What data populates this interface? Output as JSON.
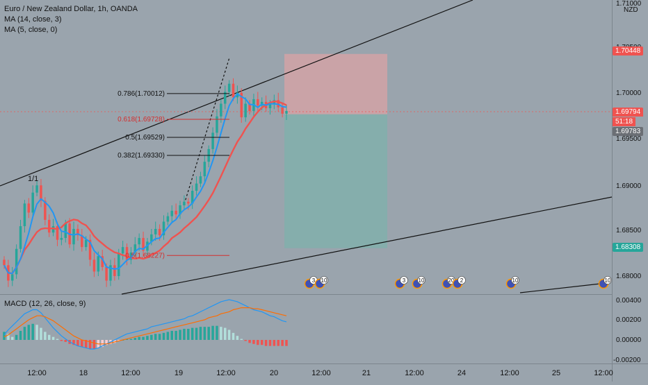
{
  "header": {
    "title": "Euro / New Zealand Dollar, 1h, OANDA",
    "indicator_1": "MA (14, close, 3)",
    "indicator_2": "MA (5, close, 0)",
    "currency": "NZD",
    "top_tick": "1.71000"
  },
  "macd": {
    "label": "MACD (12, 26, close, 9)"
  },
  "price_axis": {
    "ticks": [
      "1.70500",
      "1.70000",
      "1.69500",
      "1.69000",
      "1.68500",
      "1.68000"
    ],
    "tag_stop": "1.70448",
    "tag_current": "1.69794",
    "tag_countdown": "51:18",
    "tag_entry": "1.69783",
    "tag_target": "1.68308",
    "colors": {
      "stop": "#ef5350",
      "current": "#ef5350",
      "entry": "#6b6f75",
      "target": "#26a69a"
    }
  },
  "macd_axis": {
    "ticks": [
      "0.00400",
      "0.00200",
      "0.00000",
      "-0.00200"
    ]
  },
  "time_axis": {
    "ticks": [
      "12:00",
      "18",
      "12:00",
      "19",
      "12:00",
      "20",
      "12:00",
      "21",
      "12:00",
      "24",
      "12:00",
      "25",
      "12:00"
    ]
  },
  "annotations": {
    "wave_label": "1/1",
    "fib_levels": [
      {
        "label": "0.786(1.70012)",
        "color": "#111111"
      },
      {
        "label": "0.618(1.69728)",
        "color": "#d32f2f"
      },
      {
        "label": "0.5(1.69529)",
        "color": "#111111"
      },
      {
        "label": "0.382(1.69330)",
        "color": "#111111"
      },
      {
        "label": "0.5(1.68227)",
        "color": "#d32f2f"
      }
    ],
    "event_badges": [
      "3",
      "10",
      "3",
      "10",
      "20",
      "2",
      "10",
      "10"
    ]
  },
  "chart_data": {
    "type": "candlestick",
    "symbol": "EURNZD",
    "interval": "1h",
    "ylim": [
      1.6765,
      1.7115
    ],
    "price_levels": {
      "stop_loss": 1.70448,
      "current": 1.69794,
      "entry": 1.69783,
      "take_profit": 1.68308
    },
    "fibonacci": [
      {
        "ratio": 0.786,
        "price": 1.70012
      },
      {
        "ratio": 0.618,
        "price": 1.69728
      },
      {
        "ratio": 0.5,
        "price": 1.69529
      },
      {
        "ratio": 0.382,
        "price": 1.6933
      },
      {
        "ratio": 0.5,
        "price": 1.68227
      }
    ],
    "series": [
      {
        "name": "MA (14, close, 3)",
        "color": "#ef5350"
      },
      {
        "name": "MA (5, close, 0)",
        "color": "#2196f3"
      }
    ],
    "closes": [
      1.6812,
      1.6795,
      1.6802,
      1.683,
      1.6855,
      1.688,
      1.687,
      1.6892,
      1.69,
      1.6883,
      1.6862,
      1.6848,
      1.6855,
      1.684,
      1.6842,
      1.6858,
      1.6835,
      1.6852,
      1.6845,
      1.6832,
      1.684,
      1.6818,
      1.6805,
      1.6822,
      1.681,
      1.6795,
      1.6812,
      1.68,
      1.6825,
      1.6832,
      1.6818,
      1.6826,
      1.6835,
      1.6842,
      1.6828,
      1.6838,
      1.6846,
      1.6852,
      1.6845,
      1.686,
      1.6866,
      1.6872,
      1.6868,
      1.6878,
      1.6882,
      1.688,
      1.6894,
      1.6902,
      1.691,
      1.6926,
      1.694,
      1.6958,
      1.6976,
      1.699,
      1.7003,
      1.7012,
      1.6997,
      1.7002,
      1.6975,
      1.699,
      1.6982,
      1.6995,
      1.6988,
      1.6992,
      1.6985,
      1.699,
      1.6994,
      1.6986,
      1.6979,
      1.6982
    ],
    "macd_hist": [
      0.0008,
      0.0006,
      0.0003,
      0.0005,
      0.0009,
      0.0013,
      0.0015,
      0.0016,
      0.0015,
      0.0012,
      0.0008,
      0.0005,
      0.0003,
      0.0001,
      -0.0001,
      -0.0002,
      -0.0004,
      -0.0005,
      -0.0006,
      -0.0007,
      -0.0008,
      -0.0009,
      -0.0009,
      -0.0008,
      -0.0007,
      -0.0005,
      -0.0004,
      -0.0003,
      -0.0001,
      0.0,
      0.0001,
      0.0001,
      0.0002,
      0.0003,
      0.0003,
      0.0004,
      0.0005,
      0.0006,
      0.0006,
      0.0007,
      0.0008,
      0.0009,
      0.0009,
      0.001,
      0.0011,
      0.0011,
      0.0012,
      0.0012,
      0.0013,
      0.0013,
      0.0013,
      0.0014,
      0.0014,
      0.0013,
      0.0012,
      0.001,
      0.0007,
      0.0004,
      0.0001,
      -0.0001,
      -0.0003,
      -0.0004,
      -0.0005,
      -0.0005,
      -0.0006,
      -0.0006,
      -0.0006,
      -0.0006,
      -0.0006,
      -0.0006
    ],
    "macd_line": [
      0.0005,
      0.001,
      0.0014,
      0.0018,
      0.0022,
      0.0026,
      0.0028,
      0.003,
      0.003,
      0.0027,
      0.0022,
      0.0017,
      0.0012,
      0.0008,
      0.0004,
      0.0001,
      -0.0002,
      -0.0004,
      -0.0006,
      -0.0007,
      -0.0008,
      -0.0009,
      -0.0009,
      -0.0008,
      -0.0006,
      -0.0004,
      -0.0002,
      0.0,
      0.0002,
      0.0004,
      0.0006,
      0.0007,
      0.0008,
      0.0009,
      0.001,
      0.0011,
      0.0013,
      0.0014,
      0.0015,
      0.0016,
      0.0017,
      0.0018,
      0.0019,
      0.002,
      0.0021,
      0.0023,
      0.0024,
      0.0026,
      0.0028,
      0.003,
      0.0032,
      0.0034,
      0.0036,
      0.0038,
      0.0039,
      0.004,
      0.0039,
      0.0038,
      0.0036,
      0.0034,
      0.0032,
      0.003,
      0.0029,
      0.0028,
      0.0026,
      0.0024,
      0.0023,
      0.0021,
      0.0019,
      0.0018
    ],
    "macd_signal": [
      0.0003,
      0.0005,
      0.0008,
      0.0011,
      0.0014,
      0.0017,
      0.002,
      0.0022,
      0.0024,
      0.0024,
      0.0023,
      0.0021,
      0.0019,
      0.0016,
      0.0013,
      0.001,
      0.0007,
      0.0004,
      0.0002,
      0.0,
      -0.0001,
      -0.0002,
      -0.0003,
      -0.0004,
      -0.0004,
      -0.0004,
      -0.0003,
      -0.0002,
      -0.0001,
      0.0,
      0.0001,
      0.0002,
      0.0003,
      0.0004,
      0.0005,
      0.0006,
      0.0007,
      0.0008,
      0.0009,
      0.001,
      0.0011,
      0.0012,
      0.0013,
      0.0014,
      0.0015,
      0.0016,
      0.0017,
      0.0018,
      0.0019,
      0.002,
      0.0022,
      0.0023,
      0.0024,
      0.0026,
      0.0027,
      0.0028,
      0.003,
      0.0031,
      0.0032,
      0.0032,
      0.0032,
      0.0031,
      0.0031,
      0.003,
      0.0029,
      0.0028,
      0.0027,
      0.0026,
      0.0025,
      0.0024
    ],
    "macd_ylim": [
      -0.0025,
      0.0045
    ]
  }
}
